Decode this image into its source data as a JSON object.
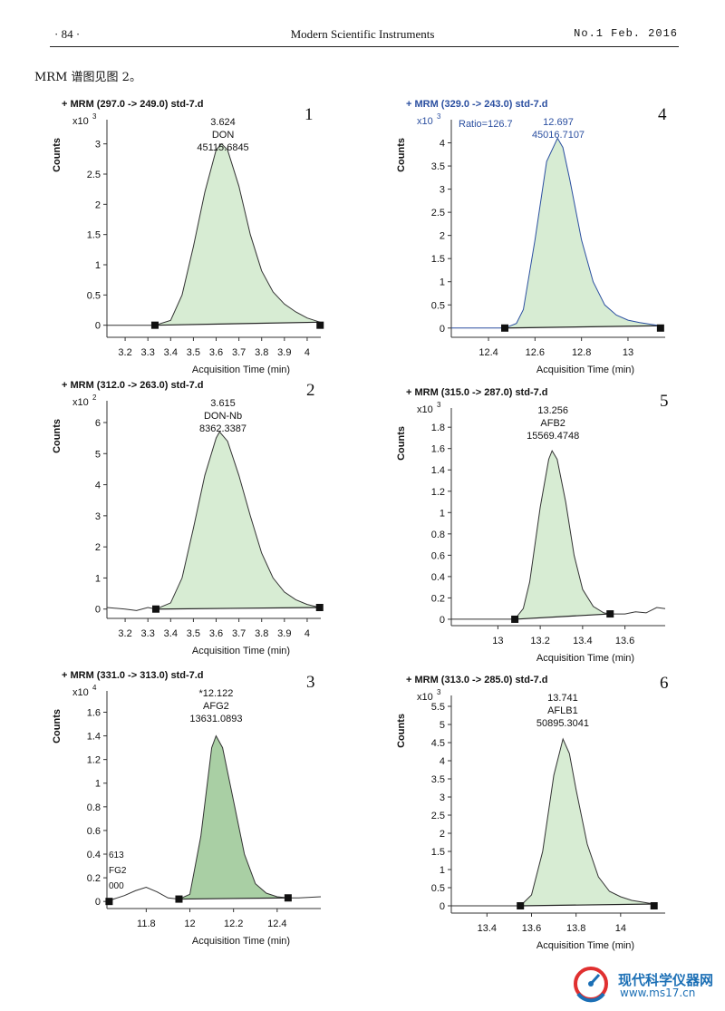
{
  "header": {
    "page_number": "· 84 ·",
    "journal": "Modern Scientific Instruments",
    "issue": "No.1 Feb. 2016"
  },
  "intro": "MRM 谱图见图 2。",
  "watermark": {
    "cn": "现代科学仪器网",
    "url": "www.ms17.cn"
  },
  "chart_data": [
    {
      "type": "line",
      "figure_number": "1",
      "title": "+ MRM (297.0 -> 249.0) std-7.d",
      "ylabel": "Counts",
      "yscale_label": "x10",
      "yscale_exp": "3",
      "xlabel": "Acquisition Time (min)",
      "xlim": [
        3.12,
        4.06
      ],
      "ylim": [
        -0.2,
        3.4
      ],
      "xticks": [
        "3.2",
        "3.3",
        "3.4",
        "3.5",
        "3.6",
        "3.7",
        "3.8",
        "3.9",
        "4"
      ],
      "yticks": [
        "0",
        "0.5",
        "1",
        "1.5",
        "2",
        "2.5",
        "3"
      ],
      "peak": {
        "rt": "3.624",
        "compound": "DON",
        "area": "45115.6845"
      },
      "peak_label_x": 3.63,
      "shade_start": 3.331,
      "shade_end": 4.057,
      "markers": [
        [
          3.331,
          0.0
        ],
        [
          4.057,
          0.0
        ]
      ],
      "series": [
        {
          "x": [
            3.12,
            3.331,
            3.4,
            3.45,
            3.5,
            3.55,
            3.6,
            3.624,
            3.65,
            3.7,
            3.75,
            3.8,
            3.85,
            3.9,
            3.95,
            4.0,
            4.057
          ],
          "values": [
            0.0,
            0.0,
            0.08,
            0.5,
            1.3,
            2.2,
            2.9,
            3.0,
            2.9,
            2.3,
            1.5,
            0.9,
            0.55,
            0.35,
            0.22,
            0.12,
            0.05
          ]
        }
      ]
    },
    {
      "type": "line",
      "figure_number": "2",
      "title": "+ MRM (312.0 -> 263.0) std-7.d",
      "ylabel": "Counts",
      "yscale_label": "x10",
      "yscale_exp": "2",
      "xlabel": "Acquisition Time (min)",
      "xlim": [
        3.12,
        4.06
      ],
      "ylim": [
        -0.3,
        6.7
      ],
      "xticks": [
        "3.2",
        "3.3",
        "3.4",
        "3.5",
        "3.6",
        "3.7",
        "3.8",
        "3.9",
        "4"
      ],
      "yticks": [
        "0",
        "1",
        "2",
        "3",
        "4",
        "5",
        "6"
      ],
      "peak": {
        "rt": "3.615",
        "compound": "DON-Nb",
        "area": "8362.3387"
      },
      "peak_label_x": 3.63,
      "shade_start": 3.335,
      "shade_end": 4.055,
      "markers": [
        [
          3.335,
          0.0
        ],
        [
          4.055,
          0.05
        ]
      ],
      "series": [
        {
          "x": [
            3.12,
            3.2,
            3.25,
            3.3,
            3.335,
            3.4,
            3.45,
            3.5,
            3.55,
            3.6,
            3.615,
            3.65,
            3.7,
            3.75,
            3.8,
            3.85,
            3.9,
            3.95,
            4.0,
            4.055
          ],
          "values": [
            0.05,
            0.0,
            -0.05,
            0.05,
            0.0,
            0.2,
            1.0,
            2.6,
            4.3,
            5.5,
            5.7,
            5.4,
            4.3,
            3.0,
            1.8,
            1.0,
            0.55,
            0.3,
            0.15,
            0.05
          ]
        }
      ]
    },
    {
      "type": "line",
      "figure_number": "3",
      "title": "+ MRM (331.0 -> 313.0) std-7.d",
      "ylabel": "Counts",
      "yscale_label": "x10",
      "yscale_exp": "4",
      "xlabel": "Acquisition Time (min)",
      "xlim": [
        11.62,
        12.6
      ],
      "ylim": [
        -0.06,
        1.78
      ],
      "xticks": [
        "11.8",
        "12",
        "12.2",
        "12.4"
      ],
      "yticks": [
        "0",
        "0.2",
        "0.4",
        "0.6",
        "0.8",
        "1",
        "1.2",
        "1.4",
        "1.6"
      ],
      "peak": {
        "rt": "*12.122",
        "compound": "AFG2",
        "area": "13631.0893"
      },
      "peak_label_x": 12.12,
      "truncated_label": [
        "613",
        "FG2",
        "000"
      ],
      "shade_start": 11.95,
      "shade_end": 12.45,
      "markers": [
        [
          11.63,
          0.0
        ],
        [
          11.95,
          0.02
        ],
        [
          12.45,
          0.03
        ]
      ],
      "series": [
        {
          "x": [
            11.62,
            11.65,
            11.7,
            11.75,
            11.8,
            11.85,
            11.9,
            11.95,
            12.0,
            12.05,
            12.1,
            12.12,
            12.15,
            12.2,
            12.25,
            12.3,
            12.35,
            12.4,
            12.45,
            12.5,
            12.6
          ],
          "values": [
            0.0,
            0.02,
            0.05,
            0.09,
            0.12,
            0.08,
            0.03,
            0.02,
            0.06,
            0.55,
            1.3,
            1.4,
            1.3,
            0.85,
            0.4,
            0.15,
            0.07,
            0.04,
            0.03,
            0.03,
            0.04
          ]
        }
      ]
    },
    {
      "type": "line",
      "figure_number": "4",
      "title": "+ MRM (329.0 -> 243.0) std-7.d",
      "ratio": "Ratio=126.7",
      "ylabel": "Counts",
      "yscale_label": "x10",
      "yscale_exp": "3",
      "xlabel": "Acquisition Time (min)",
      "xlim": [
        12.24,
        13.16
      ],
      "ylim": [
        -0.2,
        4.5
      ],
      "xticks": [
        "12.4",
        "12.6",
        "12.8",
        "13"
      ],
      "yticks": [
        "0",
        "0.5",
        "1",
        "1.5",
        "2",
        "2.5",
        "3",
        "3.5",
        "4"
      ],
      "peak": {
        "rt": "12.697",
        "compound": "",
        "area": "45016.7107"
      },
      "peak_label_x": 12.7,
      "line_color": "#2b4fa0",
      "shade_start": 12.47,
      "shade_end": 13.14,
      "markers": [
        [
          12.47,
          0.0
        ],
        [
          13.14,
          0.0
        ]
      ],
      "series": [
        {
          "x": [
            12.24,
            12.47,
            12.52,
            12.55,
            12.6,
            12.65,
            12.697,
            12.72,
            12.75,
            12.8,
            12.85,
            12.9,
            12.95,
            13.0,
            13.05,
            13.1,
            13.14
          ],
          "values": [
            0.0,
            0.0,
            0.1,
            0.4,
            1.9,
            3.6,
            4.1,
            3.9,
            3.2,
            1.9,
            1.0,
            0.5,
            0.28,
            0.17,
            0.12,
            0.08,
            0.05
          ]
        }
      ]
    },
    {
      "type": "line",
      "figure_number": "5",
      "title": "+ MRM (315.0 -> 287.0) std-7.d",
      "ylabel": "Counts",
      "yscale_label": "x10",
      "yscale_exp": "3",
      "xlabel": "Acquisition Time (min)",
      "xlim": [
        12.78,
        13.79
      ],
      "ylim": [
        -0.06,
        1.98
      ],
      "xticks": [
        "13",
        "13.2",
        "13.4",
        "13.6"
      ],
      "yticks": [
        "0",
        "0.2",
        "0.4",
        "0.6",
        "0.8",
        "1",
        "1.2",
        "1.4",
        "1.6",
        "1.8"
      ],
      "peak": {
        "rt": "13.256",
        "compound": "AFB2",
        "area": "15569.4748"
      },
      "peak_label_x": 13.26,
      "shade_start": 13.08,
      "shade_end": 13.53,
      "markers": [
        [
          13.08,
          0.0
        ],
        [
          13.53,
          0.05
        ]
      ],
      "series": [
        {
          "x": [
            12.78,
            13.0,
            13.08,
            13.12,
            13.15,
            13.2,
            13.24,
            13.256,
            13.28,
            13.32,
            13.36,
            13.4,
            13.45,
            13.5,
            13.53,
            13.6,
            13.65,
            13.7,
            13.75,
            13.79
          ],
          "values": [
            0.0,
            0.0,
            0.0,
            0.1,
            0.35,
            1.05,
            1.5,
            1.58,
            1.5,
            1.1,
            0.6,
            0.28,
            0.12,
            0.06,
            0.05,
            0.05,
            0.07,
            0.06,
            0.11,
            0.1
          ]
        }
      ]
    },
    {
      "type": "line",
      "figure_number": "6",
      "title": "+ MRM (313.0 -> 285.0) std-7.d",
      "ylabel": "Counts",
      "yscale_label": "x10",
      "yscale_exp": "3",
      "xlabel": "Acquisition Time (min)",
      "xlim": [
        13.24,
        14.2
      ],
      "ylim": [
        -0.2,
        5.8
      ],
      "xticks": [
        "13.4",
        "13.6",
        "13.8",
        "14"
      ],
      "yticks": [
        "0",
        "0.5",
        "1",
        "1.5",
        "2",
        "2.5",
        "3",
        "3.5",
        "4",
        "4.5",
        "5",
        "5.5"
      ],
      "peak": {
        "rt": "13.741",
        "compound": "AFLB1",
        "area": "50895.3041"
      },
      "peak_label_x": 13.74,
      "shade_start": 13.55,
      "shade_end": 14.15,
      "markers": [
        [
          13.55,
          0.0
        ],
        [
          14.15,
          0.0
        ]
      ],
      "series": [
        {
          "x": [
            13.24,
            13.55,
            13.6,
            13.65,
            13.7,
            13.741,
            13.77,
            13.8,
            13.85,
            13.9,
            13.95,
            14.0,
            14.05,
            14.1,
            14.15
          ],
          "values": [
            0.0,
            0.0,
            0.3,
            1.5,
            3.6,
            4.6,
            4.2,
            3.2,
            1.7,
            0.8,
            0.4,
            0.25,
            0.15,
            0.1,
            0.05
          ]
        }
      ]
    }
  ]
}
